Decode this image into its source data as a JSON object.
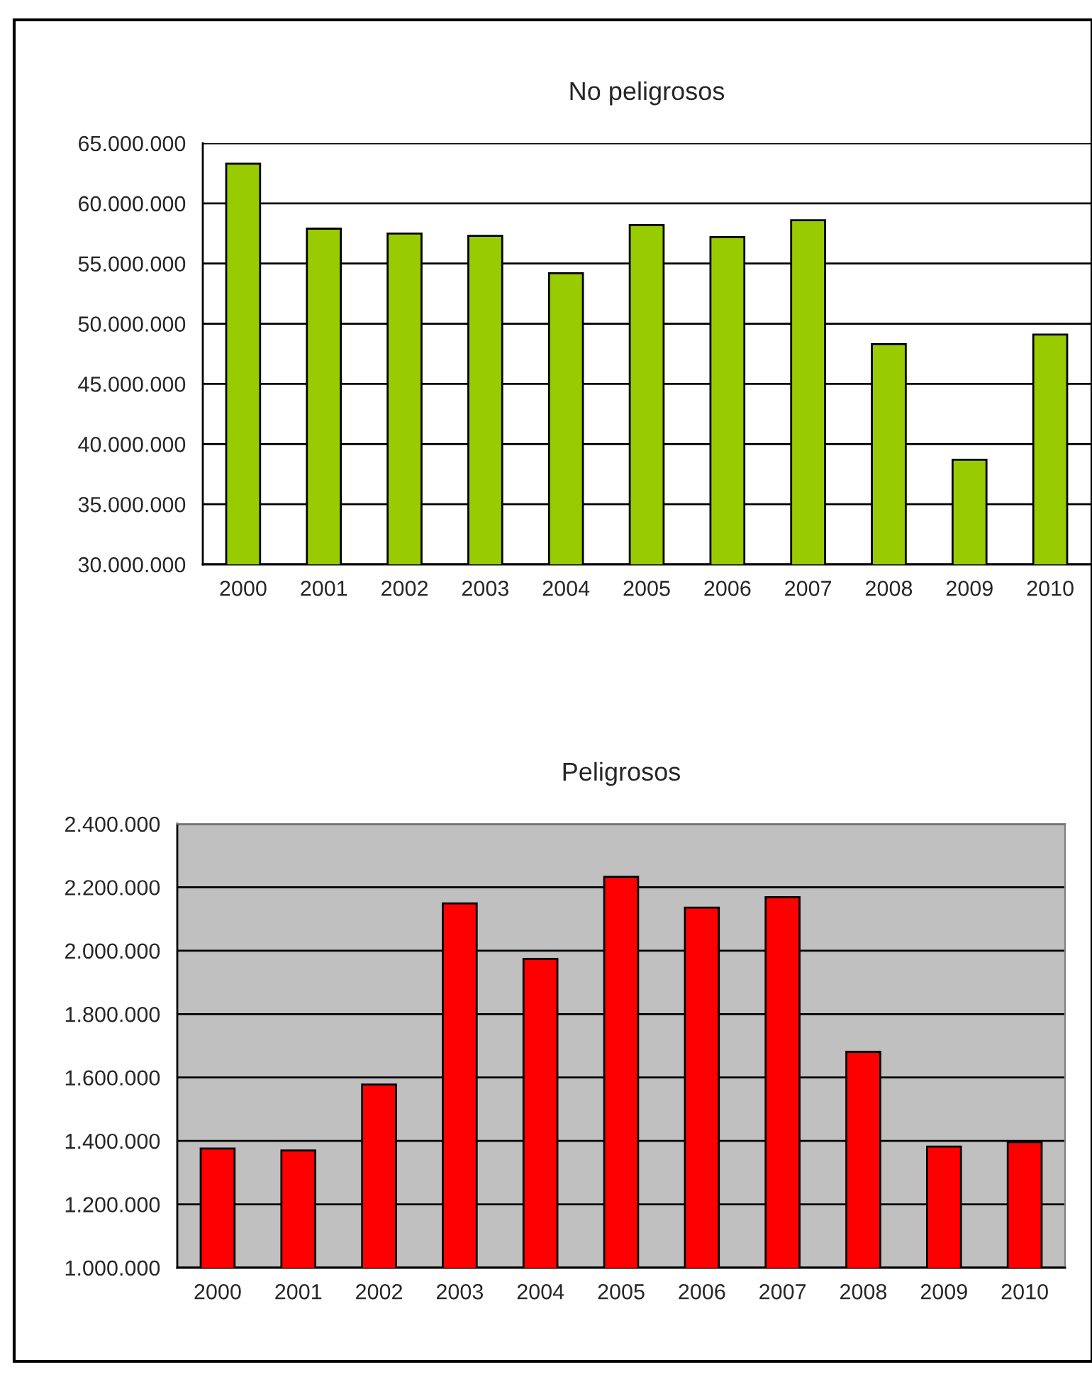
{
  "chart_data": [
    {
      "type": "bar",
      "title": "No peligrosos",
      "categories": [
        "2000",
        "2001",
        "2002",
        "2003",
        "2004",
        "2005",
        "2006",
        "2007",
        "2008",
        "2009",
        "2010"
      ],
      "values": [
        63300000,
        57900000,
        57500000,
        57300000,
        54200000,
        58200000,
        57200000,
        58600000,
        48300000,
        38700000,
        49100000
      ],
      "color": "#99cc00",
      "ylim": [
        30000000,
        65000000
      ],
      "yticks": [
        {
          "value": 30000000,
          "label": "30.000.000"
        },
        {
          "value": 35000000,
          "label": "35.000.000"
        },
        {
          "value": 40000000,
          "label": "40.000.000"
        },
        {
          "value": 45000000,
          "label": "45.000.000"
        },
        {
          "value": 50000000,
          "label": "50.000.000"
        },
        {
          "value": 55000000,
          "label": "55.000.000"
        },
        {
          "value": 60000000,
          "label": "60.000.000"
        },
        {
          "value": 65000000,
          "label": "65.000.000"
        }
      ],
      "grid": "y"
    },
    {
      "type": "bar",
      "title": "Peligrosos",
      "categories": [
        "2000",
        "2001",
        "2002",
        "2003",
        "2004",
        "2005",
        "2006",
        "2007",
        "2008",
        "2009",
        "2010"
      ],
      "values": [
        1376000,
        1370000,
        1578000,
        2149000,
        1974000,
        2233000,
        2136000,
        2169000,
        1681000,
        1382000,
        1396000
      ],
      "color": "#ff0000",
      "ylim": [
        1000000,
        2400000
      ],
      "yticks": [
        {
          "value": 1000000,
          "label": "1.000.000"
        },
        {
          "value": 1200000,
          "label": "1.200.000"
        },
        {
          "value": 1400000,
          "label": "1.400.000"
        },
        {
          "value": 1600000,
          "label": "1.600.000"
        },
        {
          "value": 1800000,
          "label": "1.800.000"
        },
        {
          "value": 2000000,
          "label": "2.000.000"
        },
        {
          "value": 2200000,
          "label": "2.200.000"
        },
        {
          "value": 2400000,
          "label": "2.400.000"
        }
      ],
      "grid": "y"
    }
  ]
}
